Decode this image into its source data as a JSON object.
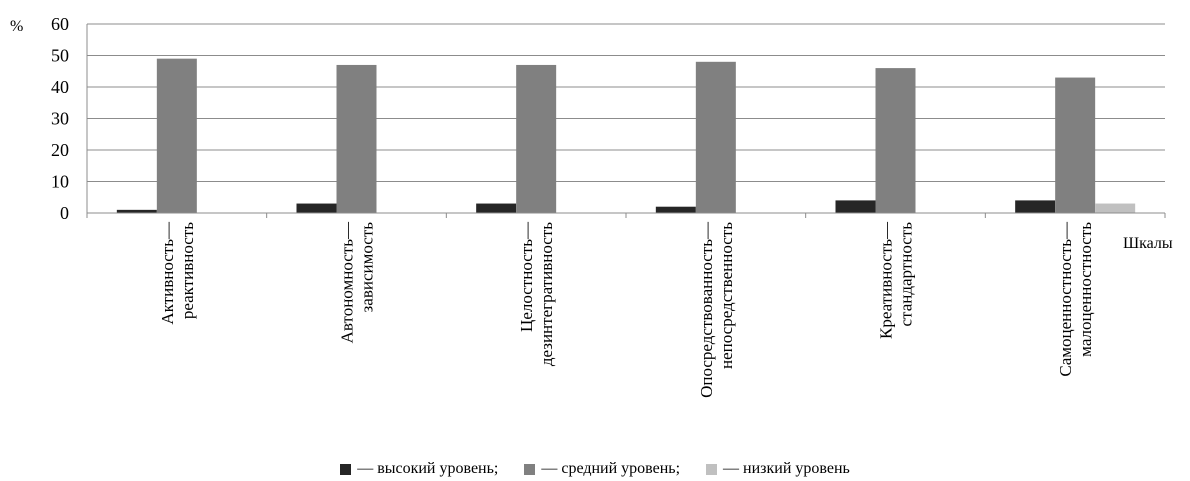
{
  "chart_data": {
    "type": "bar",
    "ylabel": "%",
    "xlabel": "Шкалы",
    "ylim": [
      0,
      60
    ],
    "yticks": [
      0,
      10,
      20,
      30,
      40,
      50,
      60
    ],
    "grid": true,
    "legend_position": "bottom",
    "categories": [
      [
        "Активность—",
        "реактивность"
      ],
      [
        "Автономность—",
        "зависимость"
      ],
      [
        "Целостность—",
        "дезинтегративность"
      ],
      [
        "Опосредствованность—",
        "непосредственность"
      ],
      [
        "Креативность—",
        "стандартность"
      ],
      [
        "Самоценностность—",
        "малоценностность"
      ]
    ],
    "series": [
      {
        "name": "— высокий уровень;",
        "color": "#262626",
        "values": [
          1,
          3,
          3,
          2,
          4,
          4
        ]
      },
      {
        "name": "— средний уровень;",
        "color": "#808080",
        "values": [
          49,
          47,
          47,
          48,
          46,
          43
        ]
      },
      {
        "name": "— низкий уровень",
        "color": "#c0c0c0",
        "values": [
          0,
          0,
          0,
          0,
          0,
          3
        ]
      }
    ]
  }
}
